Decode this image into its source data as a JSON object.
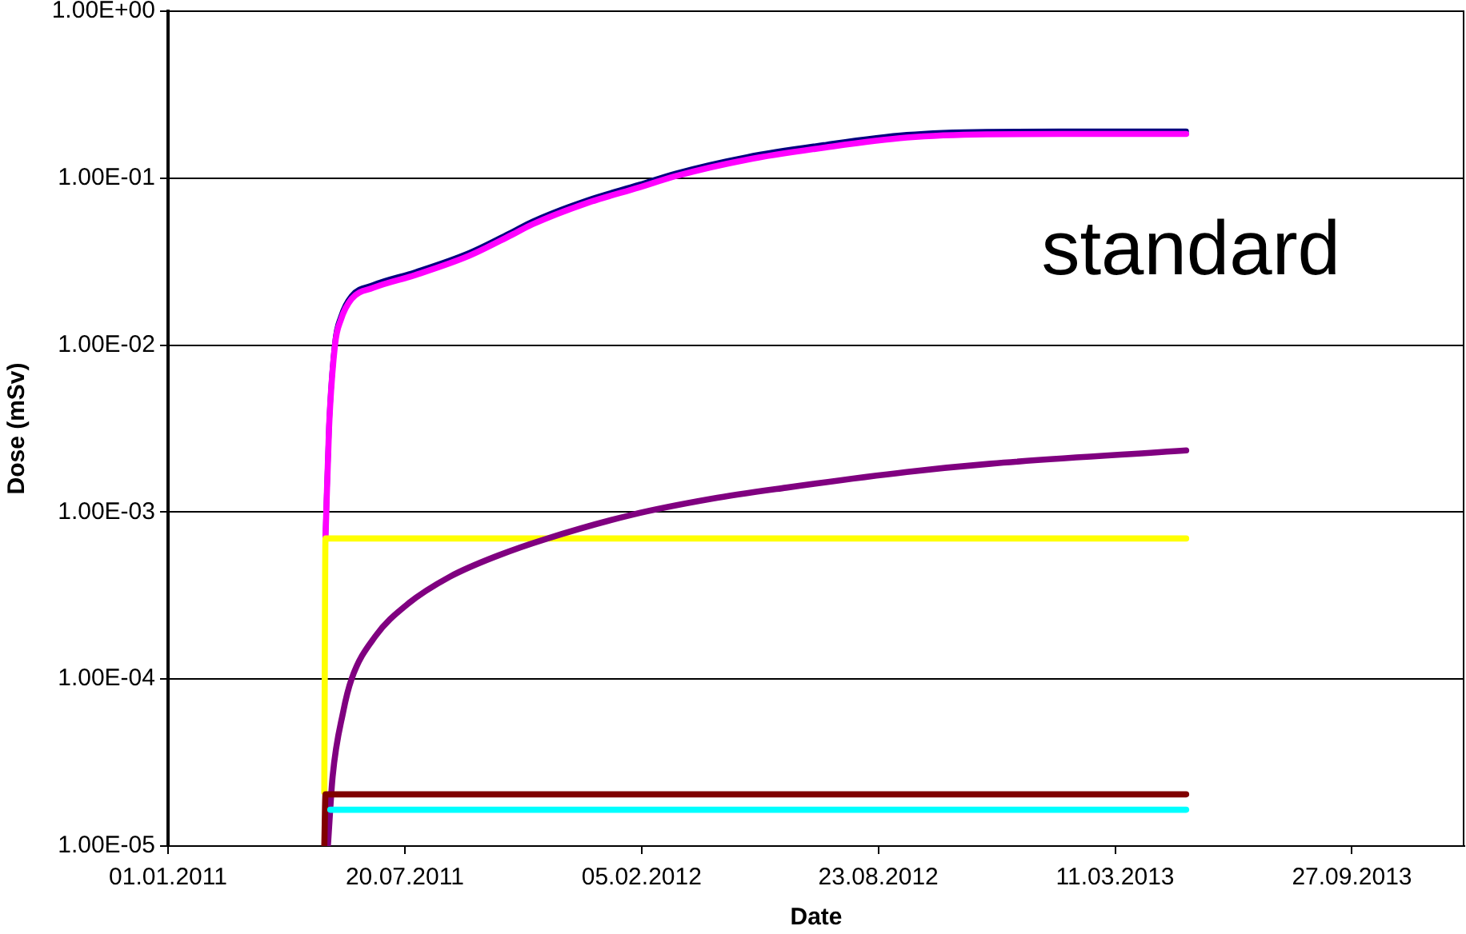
{
  "chart_data": {
    "type": "line",
    "xlabel": "Date",
    "ylabel": "Dose (mSv)",
    "annotations": [
      "standard"
    ],
    "xlim": [
      "2011-01-01",
      "2013-12-31"
    ],
    "xticks": [
      {
        "value": "2011-01-01",
        "label": "01.01.2011"
      },
      {
        "value": "2011-07-20",
        "label": "20.07.2011"
      },
      {
        "value": "2012-02-05",
        "label": "05.02.2012"
      },
      {
        "value": "2012-08-23",
        "label": "23.08.2012"
      },
      {
        "value": "2013-03-11",
        "label": "11.03.2013"
      },
      {
        "value": "2013-09-27",
        "label": "27.09.2013"
      }
    ],
    "ylim": [
      1e-05,
      1
    ],
    "yticks": [
      {
        "value": 1e-05,
        "label": "1.00E-05"
      },
      {
        "value": 0.0001,
        "label": "1.00E-04"
      },
      {
        "value": 0.001,
        "label": "1.00E-03"
      },
      {
        "value": 0.01,
        "label": "1.00E-02"
      },
      {
        "value": 0.1,
        "label": "1.00E-01"
      },
      {
        "value": 1,
        "label": "1.00E+00"
      }
    ],
    "log": "y",
    "grid": "y",
    "marker": "none",
    "line_style": "solid",
    "series": [
      {
        "color": "#000080",
        "x": [
          "2011-05-14",
          "2011-05-17",
          "2011-05-22",
          "2011-05-27",
          "2011-06-05",
          "2011-06-23",
          "2011-07-29",
          "2011-09-12",
          "2011-10-18",
          "2011-11-05",
          "2011-12-21",
          "2012-02-03",
          "2012-03-05",
          "2012-05-04",
          "2012-07-10",
          "2012-09-16",
          "2012-11-22",
          "2013-02-15",
          "2013-05-10"
        ],
        "values": [
          0.00073,
          0.0033,
          0.0104,
          0.0148,
          0.0197,
          0.0229,
          0.0274,
          0.0356,
          0.0474,
          0.0551,
          0.0738,
          0.0915,
          0.107,
          0.134,
          0.159,
          0.182,
          0.19,
          0.191,
          0.191
        ]
      },
      {
        "color": "#ff00ff",
        "x": [
          "2011-05-14",
          "2011-05-17",
          "2011-05-22",
          "2011-05-27",
          "2011-06-05",
          "2011-06-23",
          "2011-07-29",
          "2011-09-12",
          "2011-10-18",
          "2011-11-05",
          "2011-12-21",
          "2012-02-03",
          "2012-03-05",
          "2012-05-04",
          "2012-07-10",
          "2012-09-16",
          "2012-11-22",
          "2013-02-15",
          "2013-05-10"
        ],
        "values": [
          0.0007,
          0.0032,
          0.01,
          0.0142,
          0.0189,
          0.022,
          0.0263,
          0.0342,
          0.0456,
          0.053,
          0.071,
          0.088,
          0.103,
          0.129,
          0.153,
          0.175,
          0.183,
          0.184,
          0.184
        ]
      },
      {
        "color": "#ffff00",
        "x": [
          "2011-05-13",
          "2011-05-14",
          "2013-05-10"
        ],
        "values": [
          2.1e-05,
          0.000695,
          0.000695
        ]
      },
      {
        "color": "#800080",
        "x": [
          "2011-05-16",
          "2011-05-20",
          "2011-05-29",
          "2011-06-05",
          "2011-06-25",
          "2011-07-22",
          "2011-08-27",
          "2011-10-07",
          "2011-11-16",
          "2012-01-27",
          "2012-04-04",
          "2012-06-06",
          "2012-09-16",
          "2012-11-26",
          "2013-05-10"
        ],
        "values": [
          1e-05,
          2.6e-05,
          6.4e-05,
          0.0001,
          0.00018,
          0.00028,
          0.00041,
          0.00055,
          0.00069,
          0.00096,
          0.0012,
          0.0014,
          0.00174,
          0.00195,
          0.00234
        ]
      },
      {
        "color": "#800000",
        "x": [
          "2011-05-13",
          "2011-05-14",
          "2013-05-10"
        ],
        "values": [
          1e-05,
          2.04e-05,
          2.04e-05
        ]
      },
      {
        "color": "#00ffff",
        "x": [
          "2011-05-18",
          "2013-05-10"
        ],
        "values": [
          1.65e-05,
          1.65e-05
        ]
      }
    ]
  }
}
